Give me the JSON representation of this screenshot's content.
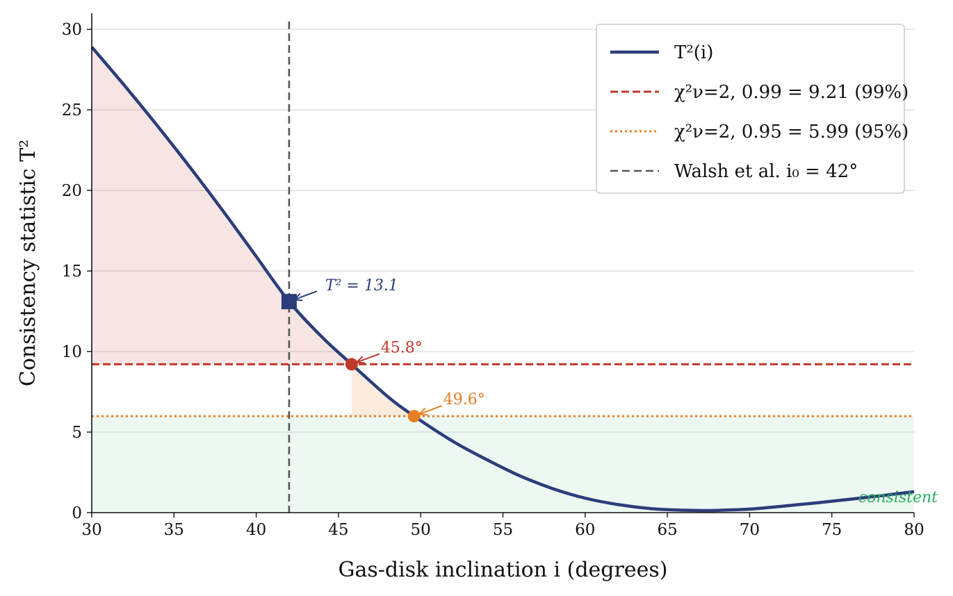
{
  "chart_data": {
    "type": "line",
    "xlabel": "Gas-disk inclination i (degrees)",
    "ylabel": "Consistency statistic T²",
    "xlim": [
      30,
      80
    ],
    "ylim": [
      0,
      31
    ],
    "x_ticks": [
      30,
      35,
      40,
      45,
      50,
      55,
      60,
      65,
      70,
      75,
      80
    ],
    "y_ticks": [
      0,
      5,
      10,
      15,
      20,
      25,
      30
    ],
    "grid": "horizontal",
    "legend_position": "top-right",
    "series": [
      {
        "name": "T²(i)",
        "color": "#2b3d7a",
        "x": [
          30,
          32,
          34,
          36,
          38,
          40,
          42,
          44,
          45.8,
          48,
          49.6,
          52,
          54,
          56,
          58,
          60,
          62,
          64,
          66,
          67.3,
          68,
          70,
          72,
          74,
          76,
          78,
          80
        ],
        "y": [
          28.9,
          26.5,
          24.0,
          21.4,
          18.7,
          15.9,
          13.1,
          10.9,
          9.21,
          7.2,
          5.99,
          4.4,
          3.3,
          2.3,
          1.5,
          0.9,
          0.5,
          0.25,
          0.15,
          0.13,
          0.14,
          0.22,
          0.4,
          0.6,
          0.82,
          1.05,
          1.3
        ]
      }
    ],
    "thresholds": [
      {
        "name": "χ²ν=2, 0.99 = 9.21 (99%)",
        "value": 9.21,
        "color": "#c0392b",
        "style": "dashed"
      },
      {
        "name": "χ²ν=2, 0.95 = 5.99 (95%)",
        "value": 5.99,
        "color": "#e67e22",
        "style": "dotted"
      }
    ],
    "reference_line": {
      "name": "Walsh et al. i₀ = 42°",
      "x": 42,
      "color": "#555555",
      "style": "dashed"
    },
    "markers": [
      {
        "x": 42,
        "y": 13.1,
        "shape": "square",
        "color": "#2b3d7a",
        "label": "T² = 13.1"
      },
      {
        "x": 45.8,
        "y": 9.21,
        "shape": "circle",
        "color": "#c0392b",
        "label": "45.8°"
      },
      {
        "x": 49.6,
        "y": 5.99,
        "shape": "circle",
        "color": "#e67e22",
        "label": "49.6°"
      }
    ],
    "regions": [
      {
        "name": "rejected-99",
        "color": "#c0392b"
      },
      {
        "name": "rejected-95",
        "color": "#e67e22"
      },
      {
        "name": "consistent",
        "color": "#27ae60",
        "label": "consistent"
      }
    ]
  }
}
